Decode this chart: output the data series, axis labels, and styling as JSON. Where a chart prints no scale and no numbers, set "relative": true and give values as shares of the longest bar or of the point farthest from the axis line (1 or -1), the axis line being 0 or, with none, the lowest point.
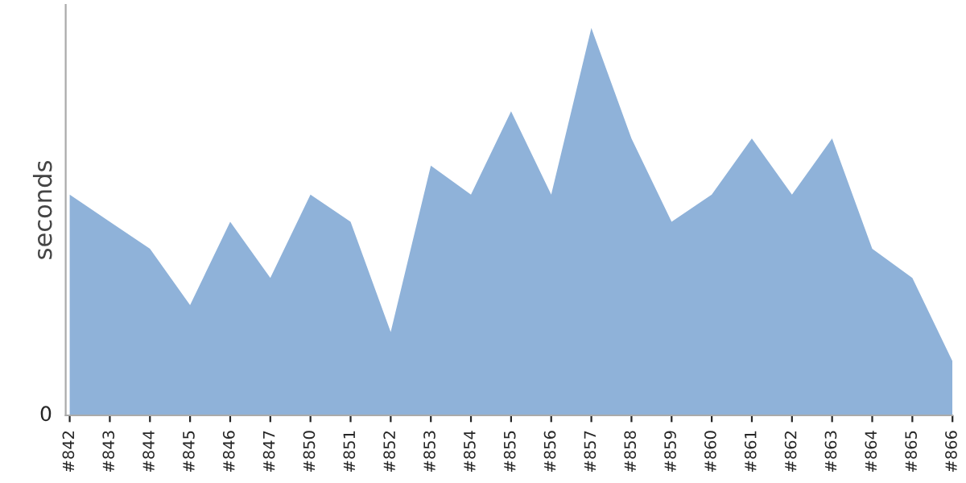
{
  "chart_data": {
    "type": "area",
    "relative": true,
    "ylabel": "seconds",
    "color": "#8fb2d9",
    "categories": [
      "#842",
      "#843",
      "#844",
      "#845",
      "#846",
      "#847",
      "#850",
      "#851",
      "#852",
      "#853",
      "#854",
      "#855",
      "#856",
      "#857",
      "#858",
      "#859",
      "#860",
      "#861",
      "#862",
      "#863",
      "#864",
      "#865",
      "#866"
    ],
    "values": [
      0.57,
      0.5,
      0.43,
      0.285,
      0.5,
      0.355,
      0.57,
      0.5,
      0.215,
      0.645,
      0.57,
      0.785,
      0.57,
      1,
      0.715,
      0.5,
      0.57,
      0.715,
      0.57,
      0.715,
      0.43,
      0.355,
      0.14
    ],
    "annotations": [
      "0"
    ],
    "grid": false
  }
}
